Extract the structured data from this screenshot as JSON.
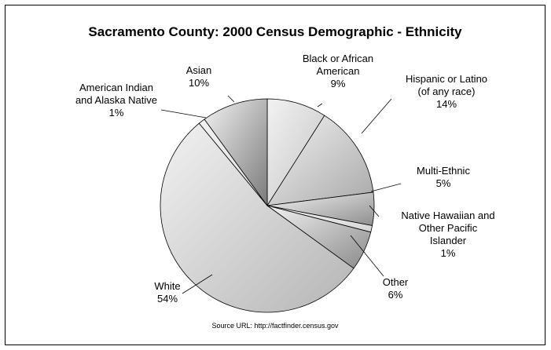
{
  "chart_data": {
    "type": "pie",
    "title": "Sacramento County: 2000 Census Demographic - Ethnicity",
    "source": "Source URL: http://factfinder.census.gov",
    "slices": [
      {
        "key": "black",
        "label_lines": [
          "Black or African",
          "American"
        ],
        "pct": "9%",
        "value": 9,
        "color": "#c4c4c4"
      },
      {
        "key": "hispanic",
        "label_lines": [
          "Hispanic or Latino",
          "(of any race)"
        ],
        "pct": "14%",
        "value": 14,
        "color": "#a9a9a9"
      },
      {
        "key": "multi",
        "label_lines": [
          "Multi-Ethnic"
        ],
        "pct": "5%",
        "value": 5,
        "color": "#8f8f8f"
      },
      {
        "key": "pacific",
        "label_lines": [
          "Native Hawaiian and",
          "Other Pacific",
          "Islander"
        ],
        "pct": "1%",
        "value": 1,
        "color": "#d6d6d6"
      },
      {
        "key": "other",
        "label_lines": [
          "Other"
        ],
        "pct": "6%",
        "value": 6,
        "color": "#8a8a8a"
      },
      {
        "key": "white",
        "label_lines": [
          "White"
        ],
        "pct": "54%",
        "value": 54,
        "color": "#b5b5b5"
      },
      {
        "key": "amind",
        "label_lines": [
          "American Indian",
          "and Alaska Native"
        ],
        "pct": "1%",
        "value": 1,
        "color": "#dddddd"
      },
      {
        "key": "asian",
        "label_lines": [
          "Asian"
        ],
        "pct": "10%",
        "value": 10,
        "color": "#7a7a7a"
      }
    ]
  }
}
